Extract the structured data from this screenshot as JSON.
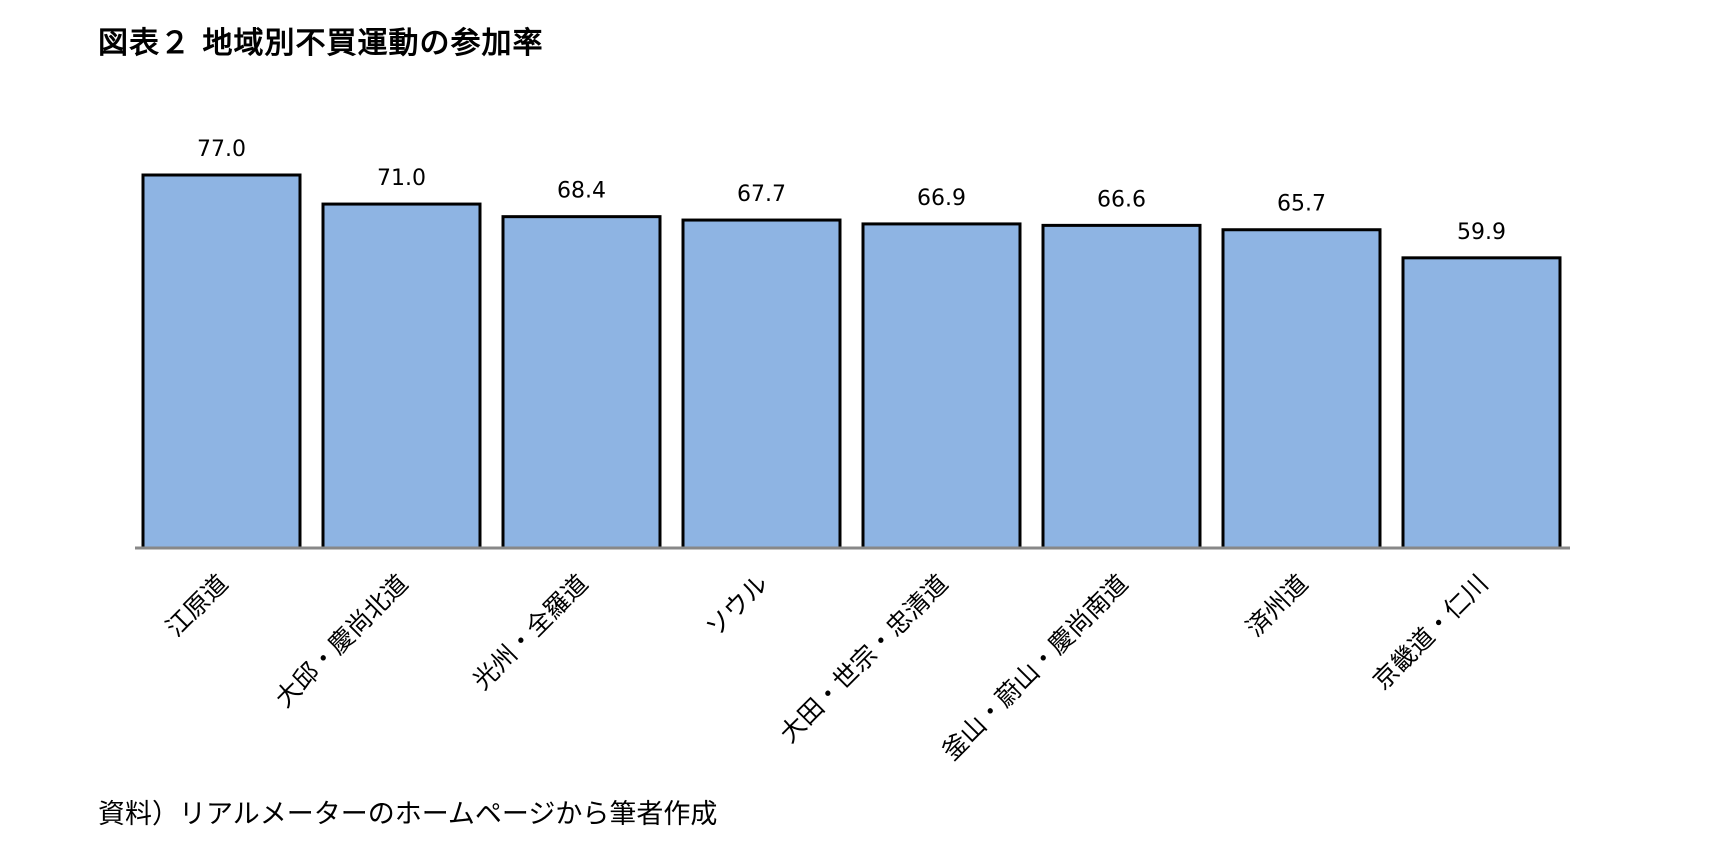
{
  "title": "図表２ 地域別不買運動の参加率",
  "source": "資料）リアルメーターのホームページから筆者作成",
  "colors": {
    "bar_fill": "#8EB4E3",
    "bar_stroke": "#000000",
    "axis": "#888888"
  },
  "chart_data": {
    "type": "bar",
    "title": "図表２ 地域別不買運動の参加率",
    "xlabel": "",
    "ylabel": "",
    "ylim": [
      0,
      85
    ],
    "grid": false,
    "legend": "none",
    "categories": [
      "江原道",
      "大邱・慶尚北道",
      "光州・全羅道",
      "ソウル",
      "大田・世宗・忠清道",
      "釜山・蔚山・慶尚南道",
      "済州道",
      "京畿道・仁川"
    ],
    "values": [
      77.0,
      71.0,
      68.4,
      67.7,
      66.9,
      66.6,
      65.7,
      59.9
    ],
    "value_labels": [
      "77.0",
      "71.0",
      "68.4",
      "67.7",
      "66.9",
      "66.6",
      "65.7",
      "59.9"
    ]
  }
}
